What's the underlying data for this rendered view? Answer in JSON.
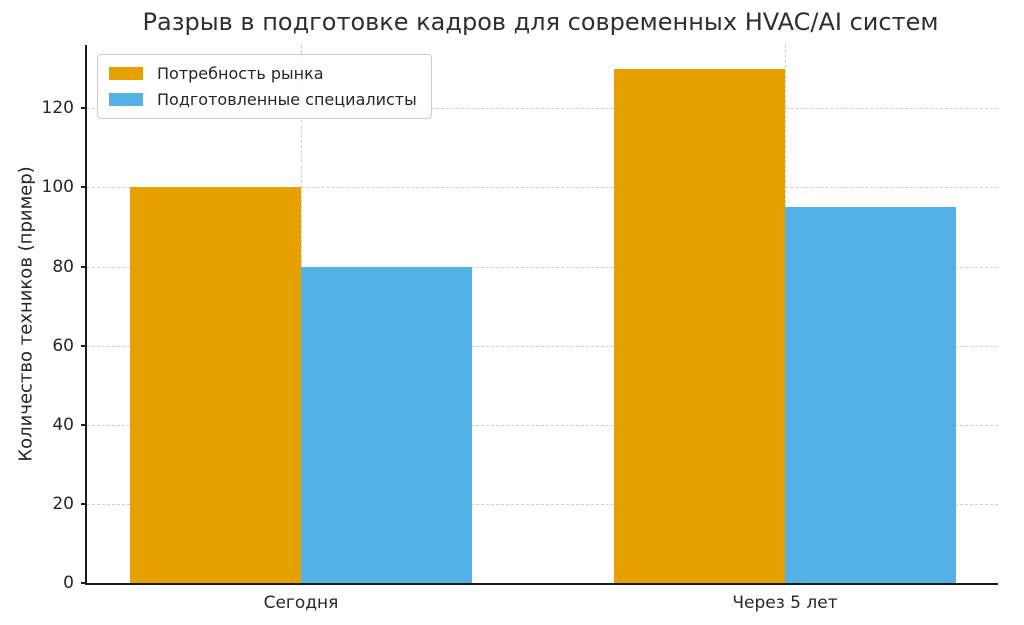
{
  "chart_data": {
    "type": "bar",
    "title": "Разрыв в подготовке кадров для современных HVAC/AI систем",
    "xlabel": "",
    "ylabel": "Количество техников (пример)",
    "categories": [
      "Сегодня",
      "Через 5 лет"
    ],
    "series": [
      {
        "name": "Потребность рынка",
        "color": "#E6A100",
        "values": [
          100,
          130
        ]
      },
      {
        "name": "Подготовленные специалисты",
        "color": "#53B1E5",
        "values": [
          80,
          95
        ]
      }
    ],
    "ylim": [
      0,
      136
    ],
    "yticks": [
      0,
      20,
      40,
      60,
      80,
      100,
      120
    ],
    "grid": true,
    "grid_style": "dashed",
    "legend_position": "upper left"
  }
}
